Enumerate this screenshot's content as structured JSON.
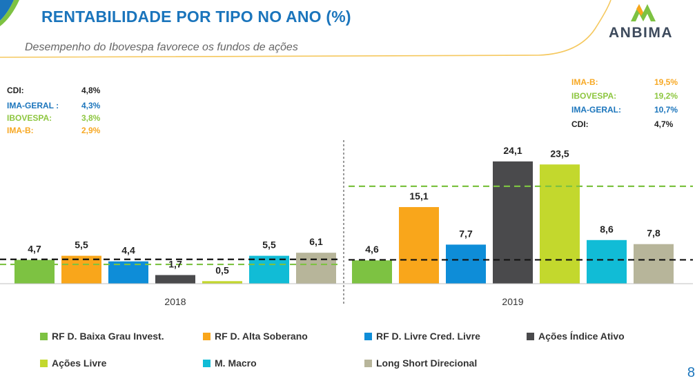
{
  "header": {
    "title": "RENTABILIDADE POR TIPO NO ANO (%)",
    "subtitle": "Desempenho do Ibovespa favorece os fundos de ações",
    "brand": "ANBIMA"
  },
  "colors": {
    "title": "#1b75bc",
    "rf_baixa_grau": "#7dc242",
    "rf_alta_soberano": "#f9a61b",
    "rf_livre_cred": "#0e8dd8",
    "acoes_indice_ativo": "#4a4a4c",
    "acoes_livre": "#c3d82d",
    "m_macro": "#11bcd6",
    "long_short": "#b7b59a",
    "cdi_line": "#111111",
    "ibovespa_line": "#7dc242",
    "logo_green": "#7dc242",
    "logo_orange": "#f9a61b",
    "header_arc": "#f5c85e"
  },
  "reference_2018": [
    {
      "label": "CDI:",
      "value": "4,8%",
      "color": "#222222"
    },
    {
      "label": "IMA-GERAL :",
      "value": "4,3%",
      "color": "#1b75bc"
    },
    {
      "label": "IBOVESPA:",
      "value": "3,8%",
      "color": "#8dc63f"
    },
    {
      "label": "IMA-B:",
      "value": "2,9%",
      "color": "#f7a823"
    }
  ],
  "reference_2019": [
    {
      "label": "IMA-B:",
      "value": "19,5%",
      "color": "#f7a823"
    },
    {
      "label": "IBOVESPA:",
      "value": "19,2%",
      "color": "#8dc63f"
    },
    {
      "label": "IMA-GERAL:",
      "value": "10,7%",
      "color": "#1b75bc"
    },
    {
      "label": "CDI:",
      "value": "4,7%",
      "color": "#222222"
    }
  ],
  "chart_data": {
    "type": "bar",
    "categories": [
      "2018",
      "2019"
    ],
    "series": [
      {
        "name": "RF D. Baixa Grau Invest.",
        "color": "#7dc242",
        "values": [
          4.7,
          4.6
        ],
        "labels": [
          "4,7",
          "4,6"
        ]
      },
      {
        "name": "RF D. Alta Soberano",
        "color": "#f9a61b",
        "values": [
          5.5,
          15.1
        ],
        "labels": [
          "5,5",
          "15,1"
        ]
      },
      {
        "name": "RF D. Livre Cred. Livre",
        "color": "#0e8dd8",
        "values": [
          4.4,
          7.7
        ],
        "labels": [
          "4,4",
          "7,7"
        ]
      },
      {
        "name": "Ações Índice Ativo",
        "color": "#4a4a4c",
        "values": [
          1.7,
          24.1
        ],
        "labels": [
          "1,7",
          "24,1"
        ]
      },
      {
        "name": "Ações Livre",
        "color": "#c3d82d",
        "values": [
          0.5,
          23.5
        ],
        "labels": [
          "0,5",
          "23,5"
        ]
      },
      {
        "name": "M. Macro",
        "color": "#11bcd6",
        "values": [
          5.5,
          8.6
        ],
        "labels": [
          "5,5",
          "8,6"
        ]
      },
      {
        "name": "Long Short Direcional",
        "color": "#b7b59a",
        "values": [
          6.1,
          7.8
        ],
        "labels": [
          "6,1",
          "7,8"
        ]
      }
    ],
    "reference_lines": [
      {
        "group": "2018",
        "name": "CDI",
        "value": 4.8,
        "style": "dashed",
        "color": "#111111"
      },
      {
        "group": "2018",
        "name": "IBOVESPA",
        "value": 3.8,
        "style": "dashed",
        "color": "#7dc242"
      },
      {
        "group": "2019",
        "name": "CDI",
        "value": 4.7,
        "style": "dashed",
        "color": "#111111"
      },
      {
        "group": "2019",
        "name": "IBOVESPA",
        "value": 19.2,
        "style": "dashed",
        "color": "#7dc242"
      }
    ],
    "ylim": [
      0,
      24.1
    ],
    "legend_position": "bottom"
  },
  "page_number": "8"
}
